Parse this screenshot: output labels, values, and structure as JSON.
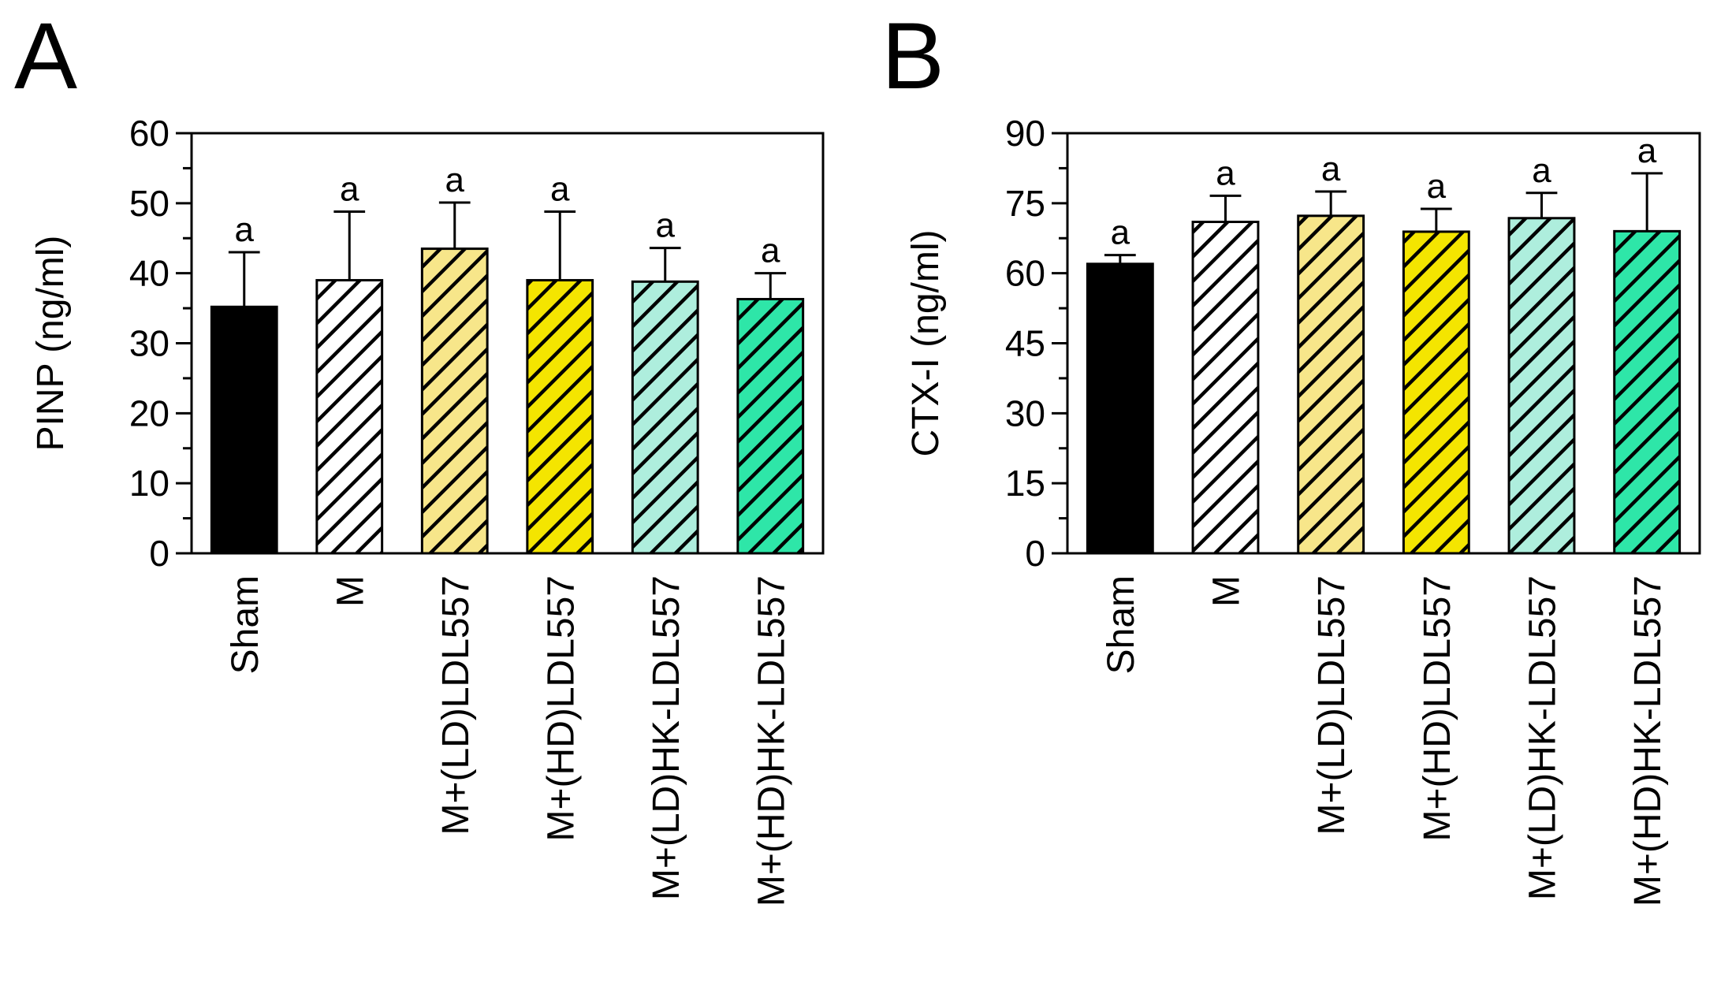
{
  "chart_data": [
    {
      "panel": "A",
      "type": "bar",
      "ylabel": "PINP (ng/ml)",
      "ylim": [
        0,
        60
      ],
      "yticks": [
        0,
        10,
        20,
        30,
        40,
        50,
        60
      ],
      "categories": [
        "Sham",
        "M",
        "M+(LD)LDL557",
        "M+(HD)LDL557",
        "M+(LD)HK-LDL557",
        "M+(HD)HK-LDL557"
      ],
      "values": [
        35.2,
        39.0,
        43.5,
        39.0,
        38.8,
        36.3
      ],
      "errors": [
        7.8,
        9.8,
        6.6,
        9.8,
        4.8,
        3.7
      ],
      "significance": [
        "a",
        "a",
        "a",
        "a",
        "a",
        "a"
      ],
      "fills": [
        "#000000",
        "#ffffff",
        "#f7e68a",
        "#f4e500",
        "#aeeedd",
        "#2ee6a8"
      ],
      "hatched": [
        false,
        true,
        true,
        true,
        true,
        true
      ],
      "grid": false
    },
    {
      "panel": "B",
      "type": "bar",
      "ylabel": "CTX-I (ng/ml)",
      "ylim": [
        0,
        90
      ],
      "yticks": [
        0,
        15,
        30,
        45,
        60,
        75,
        90
      ],
      "categories": [
        "Sham",
        "M",
        "M+(LD)LDL557",
        "M+(HD)LDL557",
        "M+(LD)HK-LDL557",
        "M+(HD)HK-LDL557"
      ],
      "values": [
        62.0,
        71.0,
        72.3,
        68.9,
        71.8,
        69.0
      ],
      "errors": [
        1.9,
        5.6,
        5.2,
        4.9,
        5.4,
        12.4
      ],
      "significance": [
        "a",
        "a",
        "a",
        "a",
        "a",
        "a"
      ],
      "fills": [
        "#000000",
        "#ffffff",
        "#f7e68a",
        "#f4e500",
        "#aeeedd",
        "#2ee6a8"
      ],
      "hatched": [
        false,
        true,
        true,
        true,
        true,
        true
      ],
      "grid": false
    }
  ]
}
